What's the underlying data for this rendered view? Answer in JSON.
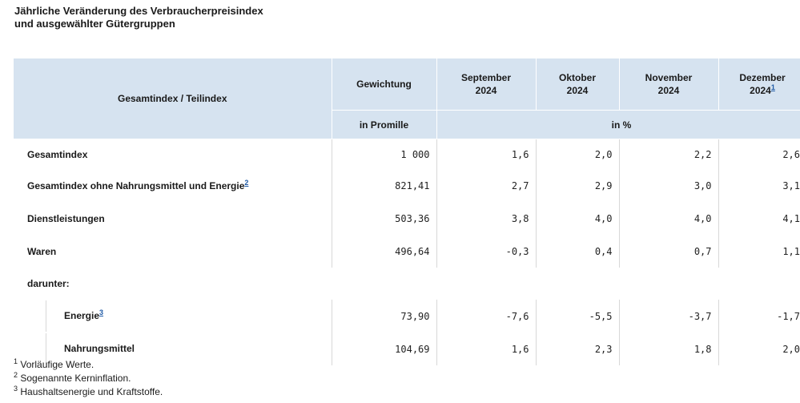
{
  "title": {
    "line1": "Jährliche Veränderung des Verbraucherpreisindex",
    "line2": "und ausgewählter Gütergruppen"
  },
  "table": {
    "header": {
      "col0": "Gesamtindex / Teilindex",
      "col1": "Gewichtung",
      "col1_unit": "in Promille",
      "unit_percent": "in %",
      "months": [
        {
          "month": "September",
          "year": "2024",
          "footnote": ""
        },
        {
          "month": "Oktober",
          "year": "2024",
          "footnote": ""
        },
        {
          "month": "November",
          "year": "2024",
          "footnote": ""
        },
        {
          "month": "Dezember",
          "year": "2024",
          "footnote": "1"
        }
      ]
    },
    "rows": [
      {
        "label": "Gesamtindex",
        "footnote": "",
        "weight": "1 000",
        "values": [
          "1,6",
          "2,0",
          "2,2",
          "2,6"
        ]
      },
      {
        "label": "Gesamtindex ohne Nahrungsmittel und Energie",
        "footnote": "2",
        "weight": "821,41",
        "values": [
          "2,7",
          "2,9",
          "3,0",
          "3,1"
        ]
      },
      {
        "label": "Dienstleistungen",
        "footnote": "",
        "weight": "503,36",
        "values": [
          "3,8",
          "4,0",
          "4,0",
          "4,1"
        ]
      },
      {
        "label": "Waren",
        "footnote": "",
        "weight": "496,64",
        "values": [
          "-0,3",
          "0,4",
          "0,7",
          "1,1"
        ]
      }
    ],
    "darunter_label": "darunter:",
    "sub_rows": [
      {
        "label": "Energie",
        "footnote": "3",
        "weight": "73,90",
        "values": [
          "-7,6",
          "-5,5",
          "-3,7",
          "-1,7"
        ]
      },
      {
        "label": "Nahrungsmittel",
        "footnote": "",
        "weight": "104,69",
        "values": [
          "1,6",
          "2,3",
          "1,8",
          "2,0"
        ]
      }
    ]
  },
  "footnotes": [
    {
      "num": "1",
      "text": "Vorläufige Werte."
    },
    {
      "num": "2",
      "text": "Sogenannte Kerninflation."
    },
    {
      "num": "3",
      "text": "Haushaltsenergie und Kraftstoffe."
    }
  ]
}
